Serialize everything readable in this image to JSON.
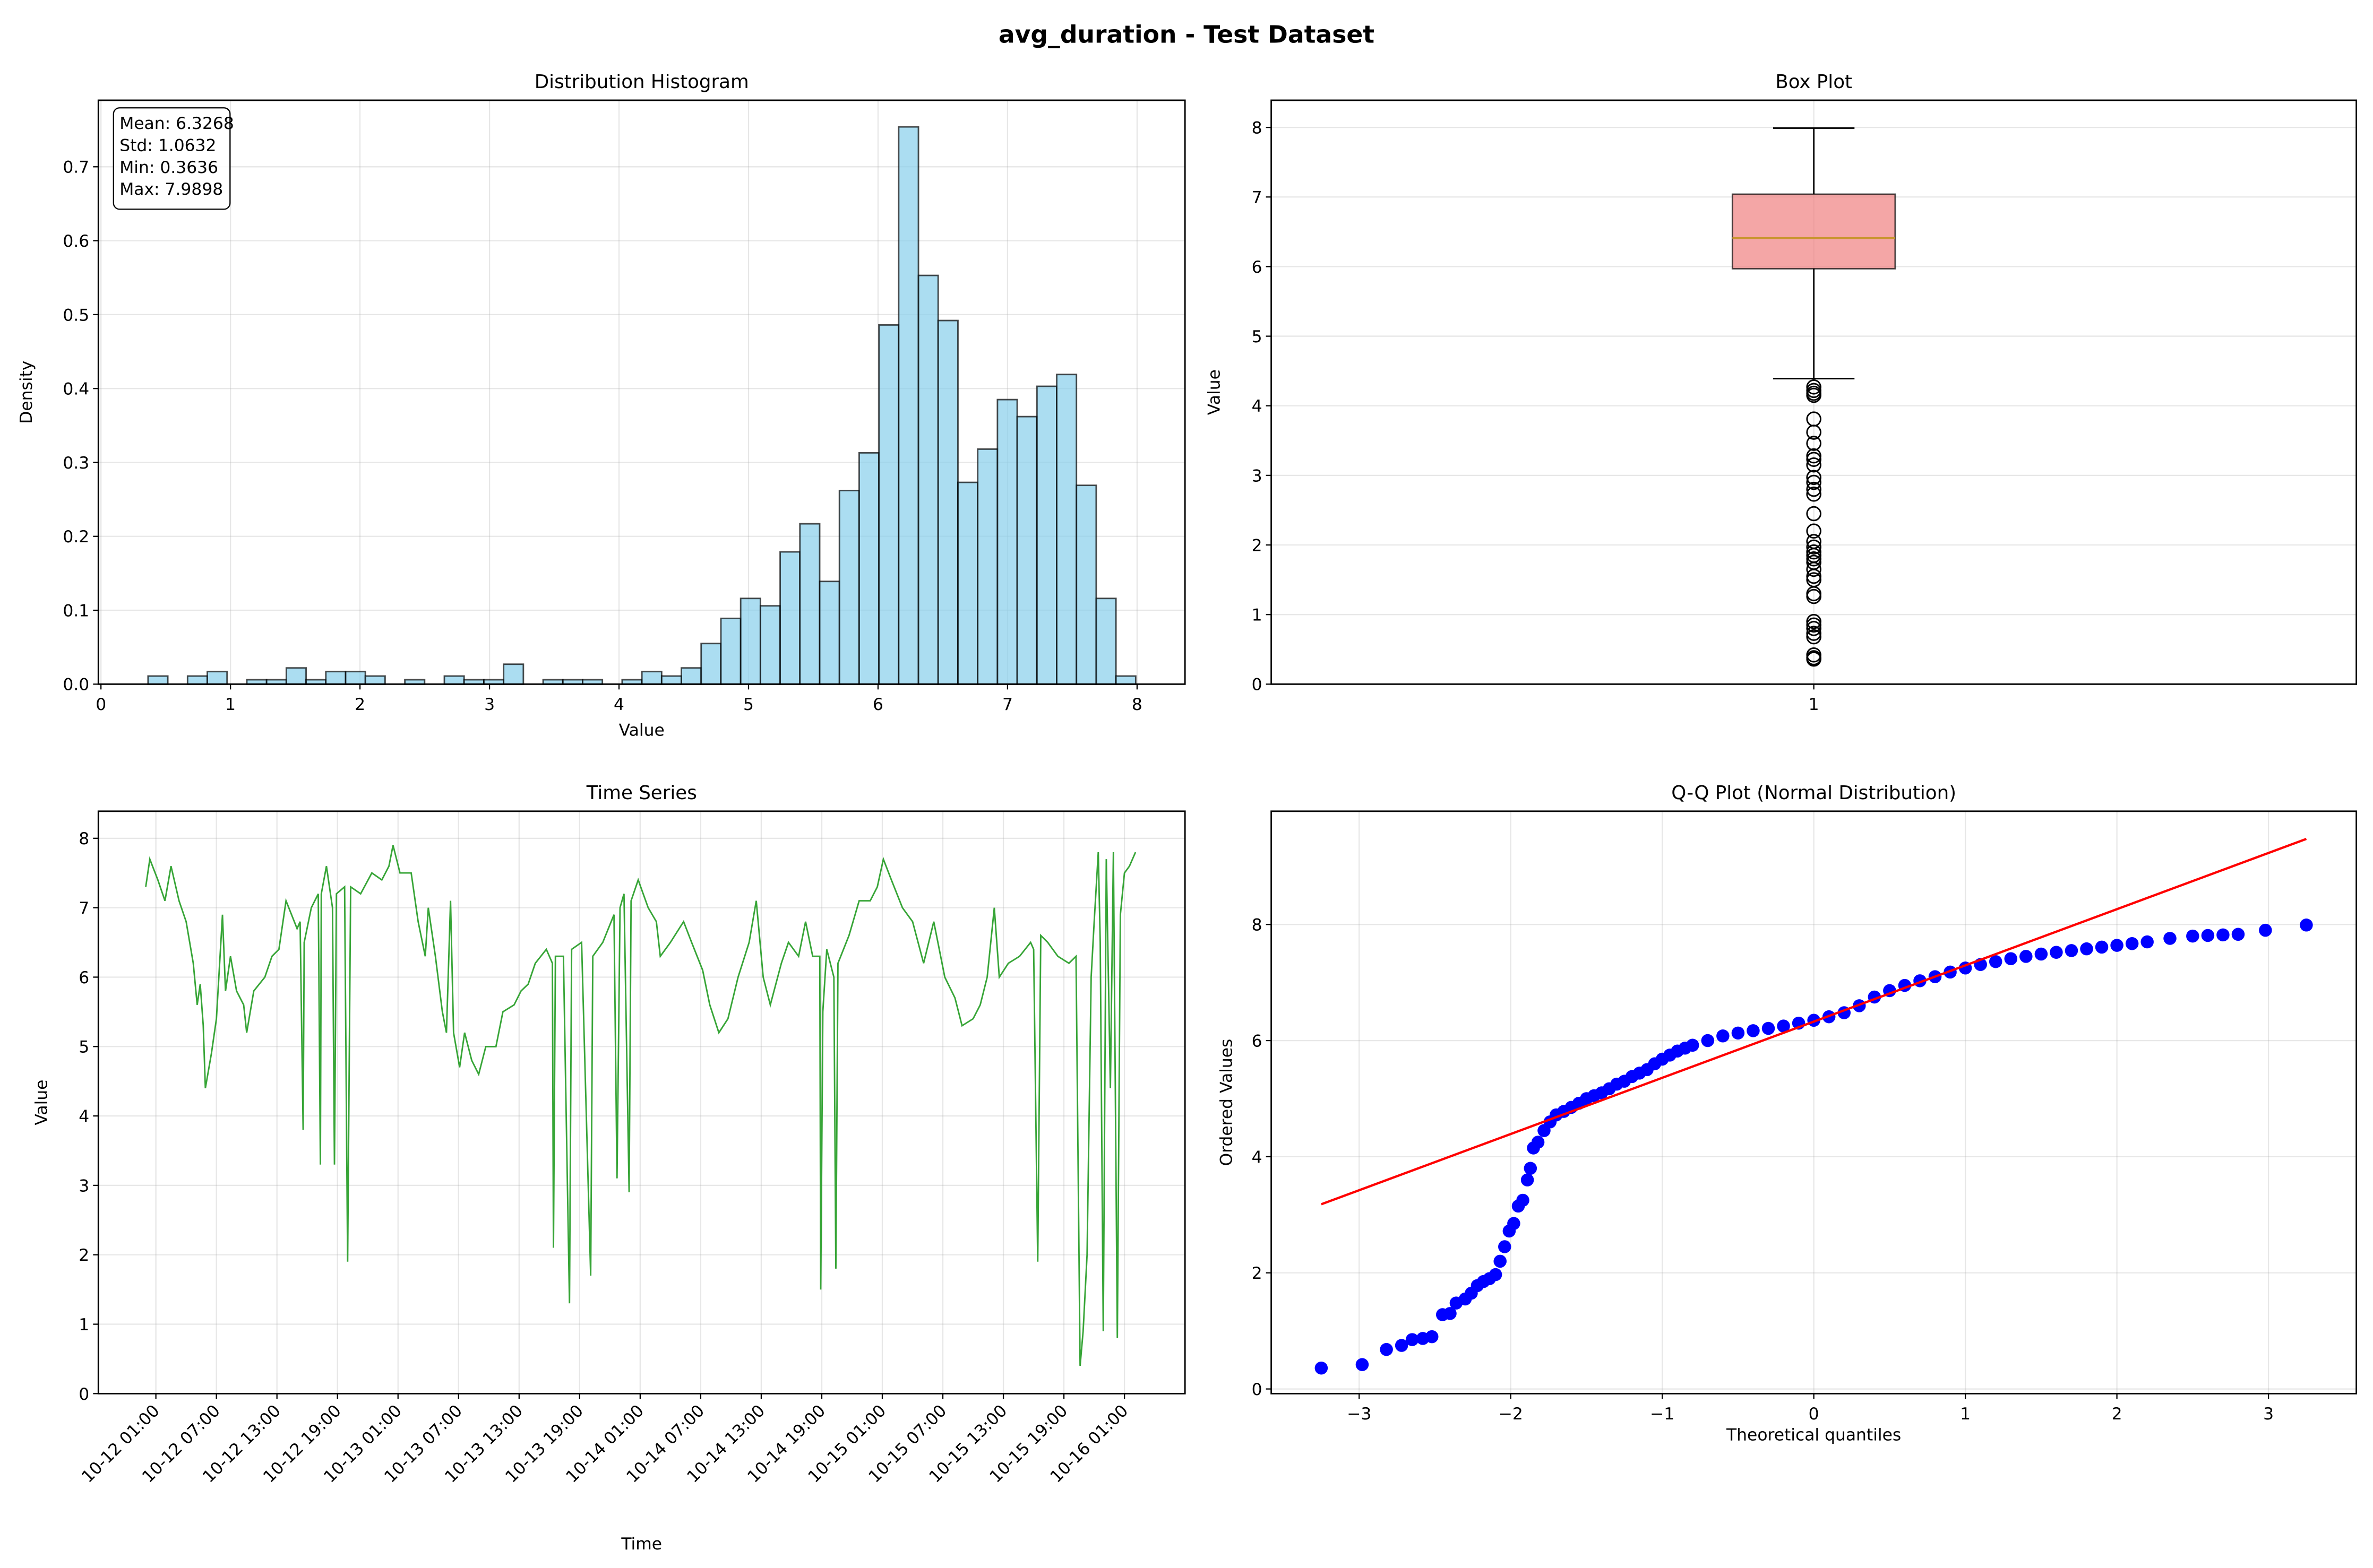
{
  "suptitle": "avg_duration - Test Dataset",
  "chart_data": [
    {
      "type": "bar",
      "subtype": "histogram",
      "title": "Distribution Histogram",
      "xlabel": "Value",
      "ylabel": "Density",
      "xlim": [
        -0.02,
        8.37
      ],
      "ylim": [
        0,
        0.79
      ],
      "xticks": [
        0,
        1,
        2,
        3,
        4,
        5,
        6,
        7,
        8
      ],
      "yticks": [
        0.0,
        0.1,
        0.2,
        0.3,
        0.4,
        0.5,
        0.6,
        0.7
      ],
      "bin_start": 0.3636,
      "bin_width": 0.15252,
      "densities": [
        0.011,
        0,
        0.011,
        0.017,
        0,
        0.006,
        0.006,
        0.022,
        0.006,
        0.017,
        0.017,
        0.011,
        0,
        0.006,
        0,
        0.011,
        0.006,
        0.006,
        0.027,
        0,
        0.006,
        0.006,
        0.006,
        0,
        0.006,
        0.017,
        0.011,
        0.022,
        0.055,
        0.089,
        0.116,
        0.106,
        0.179,
        0.217,
        0.139,
        0.262,
        0.313,
        0.486,
        0.754,
        0.553,
        0.492,
        0.273,
        0.318,
        0.385,
        0.362,
        0.403,
        0.419,
        0.269,
        0.116,
        0.011
      ],
      "fill_color": "#87ceeb",
      "stats_box": [
        "Mean: 6.3268",
        "Std: 1.0632",
        "Min: 0.3636",
        "Max: 7.9898"
      ],
      "grid": true
    },
    {
      "type": "box",
      "title": "Box Plot",
      "ylabel": "Value",
      "xticks": [
        "1"
      ],
      "ylim": [
        0,
        8.39
      ],
      "yticks": [
        0,
        1,
        2,
        3,
        4,
        5,
        6,
        7,
        8
      ],
      "whisker_low": 4.39,
      "q1": 5.97,
      "median": 6.41,
      "q3": 7.04,
      "whisker_high": 7.99,
      "outliers": [
        4.27,
        4.22,
        4.18,
        4.15,
        3.81,
        3.62,
        3.46,
        3.28,
        3.23,
        3.15,
        2.97,
        2.9,
        2.8,
        2.73,
        2.45,
        2.2,
        2.05,
        1.97,
        1.9,
        1.85,
        1.8,
        1.75,
        1.65,
        1.55,
        1.5,
        1.3,
        1.26,
        0.9,
        0.85,
        0.8,
        0.73,
        0.68,
        0.42,
        0.38,
        0.36
      ],
      "box_color": "#f08080",
      "median_color": "#c8952f",
      "grid": true
    },
    {
      "type": "line",
      "title": "Time Series",
      "xlabel": "Time",
      "ylabel": "Value",
      "x_unit": "hours since 10-12 01:00",
      "xlim": [
        -5.7,
        102
      ],
      "ylim": [
        0,
        8.39
      ],
      "yticks": [
        0,
        1,
        2,
        3,
        4,
        5,
        6,
        7,
        8
      ],
      "xtick_labels": [
        "10-12 01:00",
        "10-12 07:00",
        "10-12 13:00",
        "10-12 19:00",
        "10-13 01:00",
        "10-13 07:00",
        "10-13 13:00",
        "10-13 19:00",
        "10-14 01:00",
        "10-14 07:00",
        "10-14 13:00",
        "10-14 19:00",
        "10-15 01:00",
        "10-15 07:00",
        "10-15 13:00",
        "10-15 19:00",
        "10-16 01:00"
      ],
      "xtick_hours": [
        0,
        6,
        12,
        18,
        24,
        30,
        36,
        42,
        48,
        54,
        60,
        66,
        72,
        78,
        84,
        90,
        96
      ],
      "line_color": "#2ca02c",
      "points": [
        [
          -1,
          7.3
        ],
        [
          -0.6,
          7.7
        ],
        [
          0.2,
          7.4
        ],
        [
          0.9,
          7.1
        ],
        [
          1.5,
          7.6
        ],
        [
          2.3,
          7.1
        ],
        [
          3,
          6.8
        ],
        [
          3.7,
          6.2
        ],
        [
          4.1,
          5.6
        ],
        [
          4.4,
          5.9
        ],
        [
          4.7,
          5.3
        ],
        [
          4.9,
          4.4
        ],
        [
          5.5,
          4.9
        ],
        [
          6,
          5.4
        ],
        [
          6.6,
          6.9
        ],
        [
          6.9,
          5.8
        ],
        [
          7.4,
          6.3
        ],
        [
          8,
          5.8
        ],
        [
          8.7,
          5.6
        ],
        [
          9,
          5.2
        ],
        [
          9.7,
          5.8
        ],
        [
          10.8,
          6.0
        ],
        [
          11.5,
          6.3
        ],
        [
          12.2,
          6.4
        ],
        [
          12.9,
          7.1
        ],
        [
          14,
          6.7
        ],
        [
          14.3,
          6.8
        ],
        [
          14.6,
          3.8
        ],
        [
          14.7,
          6.5
        ],
        [
          15.4,
          7.0
        ],
        [
          16.1,
          7.2
        ],
        [
          16.3,
          3.3
        ],
        [
          16.4,
          7.2
        ],
        [
          16.9,
          7.6
        ],
        [
          17.5,
          7.0
        ],
        [
          17.7,
          3.3
        ],
        [
          17.9,
          7.2
        ],
        [
          18.7,
          7.3
        ],
        [
          19,
          1.9
        ],
        [
          19.3,
          7.3
        ],
        [
          20.3,
          7.2
        ],
        [
          21.4,
          7.5
        ],
        [
          22.4,
          7.4
        ],
        [
          23.1,
          7.6
        ],
        [
          23.5,
          7.9
        ],
        [
          24.2,
          7.5
        ],
        [
          25.3,
          7.5
        ],
        [
          26,
          6.8
        ],
        [
          26.7,
          6.3
        ],
        [
          27,
          7.0
        ],
        [
          27.7,
          6.3
        ],
        [
          28.4,
          5.5
        ],
        [
          28.8,
          5.2
        ],
        [
          29.2,
          7.1
        ],
        [
          29.5,
          5.2
        ],
        [
          30.1,
          4.7
        ],
        [
          30.6,
          5.2
        ],
        [
          31.3,
          4.8
        ],
        [
          32,
          4.6
        ],
        [
          32.7,
          5.0
        ],
        [
          33.7,
          5.0
        ],
        [
          34.4,
          5.5
        ],
        [
          35.5,
          5.6
        ],
        [
          36.2,
          5.8
        ],
        [
          36.9,
          5.9
        ],
        [
          37.6,
          6.2
        ],
        [
          38.7,
          6.4
        ],
        [
          39.3,
          6.2
        ],
        [
          39.4,
          2.1
        ],
        [
          39.6,
          6.3
        ],
        [
          40.4,
          6.3
        ],
        [
          41,
          1.3
        ],
        [
          41.2,
          6.4
        ],
        [
          42.2,
          6.5
        ],
        [
          43.1,
          1.7
        ],
        [
          43.3,
          6.3
        ],
        [
          44.3,
          6.5
        ],
        [
          45.4,
          6.9
        ],
        [
          45.7,
          3.1
        ],
        [
          46,
          7.0
        ],
        [
          46.4,
          7.2
        ],
        [
          46.9,
          2.9
        ],
        [
          47.1,
          7.1
        ],
        [
          47.8,
          7.4
        ],
        [
          48.8,
          7.0
        ],
        [
          49.6,
          6.8
        ],
        [
          50,
          6.3
        ],
        [
          51,
          6.5
        ],
        [
          52.3,
          6.8
        ],
        [
          53.1,
          6.5
        ],
        [
          54.2,
          6.1
        ],
        [
          54.9,
          5.6
        ],
        [
          55.8,
          5.2
        ],
        [
          56.7,
          5.4
        ],
        [
          57.7,
          6.0
        ],
        [
          58.8,
          6.5
        ],
        [
          59.5,
          7.1
        ],
        [
          60.2,
          6.0
        ],
        [
          60.9,
          5.6
        ],
        [
          62,
          6.2
        ],
        [
          62.7,
          6.5
        ],
        [
          63.7,
          6.3
        ],
        [
          64.4,
          6.8
        ],
        [
          65.1,
          6.3
        ],
        [
          65.8,
          6.3
        ],
        [
          65.9,
          1.5
        ],
        [
          66.1,
          5.5
        ],
        [
          66.5,
          6.4
        ],
        [
          67.2,
          6.0
        ],
        [
          67.4,
          1.8
        ],
        [
          67.6,
          6.2
        ],
        [
          68.7,
          6.6
        ],
        [
          69.7,
          7.1
        ],
        [
          70.8,
          7.1
        ],
        [
          71.5,
          7.3
        ],
        [
          72.1,
          7.7
        ],
        [
          72.9,
          7.4
        ],
        [
          74,
          7.0
        ],
        [
          75,
          6.8
        ],
        [
          76.1,
          6.2
        ],
        [
          77.1,
          6.8
        ],
        [
          78.2,
          6.0
        ],
        [
          79.2,
          5.7
        ],
        [
          79.9,
          5.3
        ],
        [
          81,
          5.4
        ],
        [
          81.7,
          5.6
        ],
        [
          82.4,
          6.0
        ],
        [
          83.1,
          7.0
        ],
        [
          83.6,
          6.0
        ],
        [
          84.5,
          6.2
        ],
        [
          85.6,
          6.3
        ],
        [
          86.7,
          6.5
        ],
        [
          87,
          6.4
        ],
        [
          87.4,
          1.9
        ],
        [
          87.7,
          6.6
        ],
        [
          88.4,
          6.5
        ],
        [
          89.4,
          6.3
        ],
        [
          90.5,
          6.2
        ],
        [
          91.2,
          6.3
        ],
        [
          91.6,
          0.4
        ],
        [
          91.9,
          0.9
        ],
        [
          92.3,
          2.0
        ],
        [
          92.7,
          6.0
        ],
        [
          93,
          6.8
        ],
        [
          93.4,
          7.8
        ],
        [
          93.6,
          6.5
        ],
        [
          93.9,
          0.9
        ],
        [
          94.2,
          7.7
        ],
        [
          94.6,
          4.4
        ],
        [
          94.9,
          7.8
        ],
        [
          95.3,
          0.8
        ],
        [
          95.6,
          6.9
        ],
        [
          96,
          7.5
        ],
        [
          96.5,
          7.6
        ],
        [
          97.1,
          7.8
        ]
      ],
      "grid": true
    },
    {
      "type": "scatter",
      "title": "Q-Q Plot (Normal Distribution)",
      "xlabel": "Theoretical quantiles",
      "ylabel": "Ordered Values",
      "xlim": [
        -3.58,
        3.58
      ],
      "ylim": [
        -0.08,
        9.95
      ],
      "xticks": [
        -3,
        -2,
        -1,
        0,
        1,
        2,
        3
      ],
      "xtick_labels": [
        "−3",
        "−2",
        "−1",
        "0",
        "1",
        "2",
        "3"
      ],
      "yticks": [
        0,
        2,
        4,
        6,
        8
      ],
      "point_color": "#0000ff",
      "fit_line_color": "#ff0000",
      "fit_line": {
        "slope": 0.968,
        "intercept": 6.327,
        "x_range": [
          -3.25,
          3.25
        ]
      },
      "points": [
        [
          -3.25,
          0.36
        ],
        [
          -2.98,
          0.42
        ],
        [
          -2.82,
          0.68
        ],
        [
          -2.72,
          0.75
        ],
        [
          -2.65,
          0.85
        ],
        [
          -2.58,
          0.87
        ],
        [
          -2.52,
          0.9
        ],
        [
          -2.45,
          1.28
        ],
        [
          -2.4,
          1.3
        ],
        [
          -2.36,
          1.48
        ],
        [
          -2.3,
          1.55
        ],
        [
          -2.26,
          1.65
        ],
        [
          -2.22,
          1.78
        ],
        [
          -2.18,
          1.85
        ],
        [
          -2.14,
          1.9
        ],
        [
          -2.1,
          1.97
        ],
        [
          -2.07,
          2.2
        ],
        [
          -2.04,
          2.45
        ],
        [
          -2.01,
          2.72
        ],
        [
          -1.98,
          2.85
        ],
        [
          -1.95,
          3.15
        ],
        [
          -1.92,
          3.25
        ],
        [
          -1.89,
          3.6
        ],
        [
          -1.87,
          3.8
        ],
        [
          -1.85,
          4.15
        ],
        [
          -1.82,
          4.25
        ],
        [
          -1.78,
          4.45
        ],
        [
          -1.74,
          4.6
        ],
        [
          -1.7,
          4.72
        ],
        [
          -1.65,
          4.78
        ],
        [
          -1.6,
          4.85
        ],
        [
          -1.55,
          4.92
        ],
        [
          -1.5,
          5.0
        ],
        [
          -1.45,
          5.05
        ],
        [
          -1.4,
          5.1
        ],
        [
          -1.35,
          5.17
        ],
        [
          -1.3,
          5.25
        ],
        [
          -1.25,
          5.3
        ],
        [
          -1.2,
          5.38
        ],
        [
          -1.15,
          5.44
        ],
        [
          -1.1,
          5.5
        ],
        [
          -1.05,
          5.6
        ],
        [
          -1.0,
          5.68
        ],
        [
          -0.95,
          5.75
        ],
        [
          -0.9,
          5.82
        ],
        [
          -0.85,
          5.87
        ],
        [
          -0.8,
          5.92
        ],
        [
          -0.7,
          6.0
        ],
        [
          -0.6,
          6.08
        ],
        [
          -0.5,
          6.13
        ],
        [
          -0.4,
          6.17
        ],
        [
          -0.3,
          6.21
        ],
        [
          -0.2,
          6.25
        ],
        [
          -0.1,
          6.3
        ],
        [
          0,
          6.35
        ],
        [
          0.1,
          6.41
        ],
        [
          0.2,
          6.48
        ],
        [
          0.3,
          6.6
        ],
        [
          0.4,
          6.75
        ],
        [
          0.5,
          6.86
        ],
        [
          0.6,
          6.95
        ],
        [
          0.7,
          7.03
        ],
        [
          0.8,
          7.1
        ],
        [
          0.9,
          7.18
        ],
        [
          1.0,
          7.25
        ],
        [
          1.1,
          7.31
        ],
        [
          1.2,
          7.36
        ],
        [
          1.3,
          7.41
        ],
        [
          1.4,
          7.45
        ],
        [
          1.5,
          7.49
        ],
        [
          1.6,
          7.52
        ],
        [
          1.7,
          7.55
        ],
        [
          1.8,
          7.58
        ],
        [
          1.9,
          7.61
        ],
        [
          2.0,
          7.64
        ],
        [
          2.1,
          7.67
        ],
        [
          2.2,
          7.7
        ],
        [
          2.35,
          7.76
        ],
        [
          2.5,
          7.8
        ],
        [
          2.6,
          7.81
        ],
        [
          2.7,
          7.82
        ],
        [
          2.8,
          7.83
        ],
        [
          2.98,
          7.9
        ],
        [
          3.25,
          7.99
        ]
      ],
      "grid": true
    }
  ]
}
